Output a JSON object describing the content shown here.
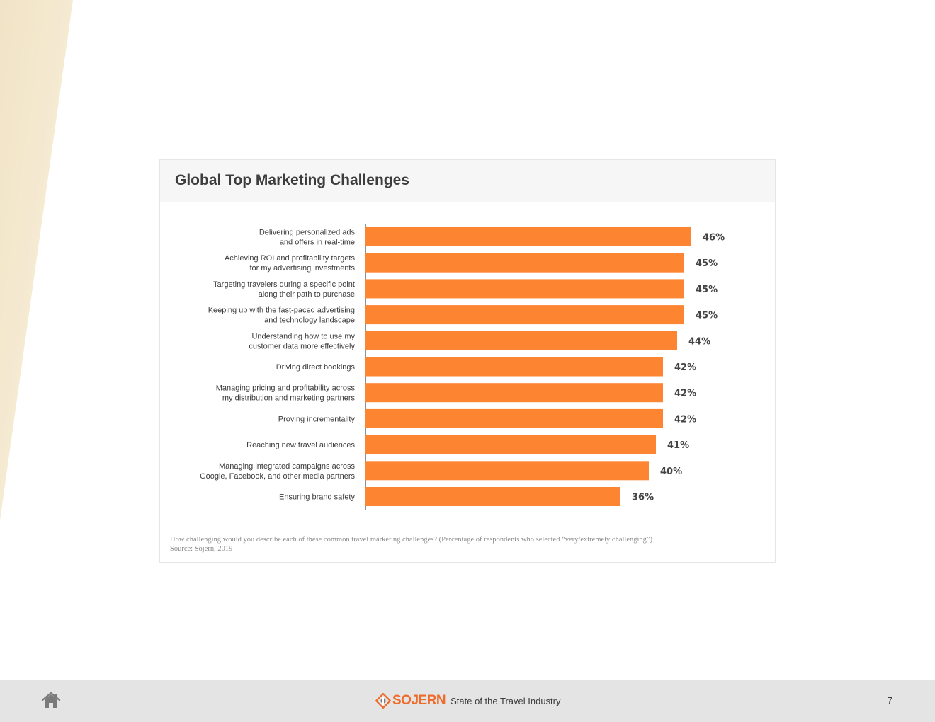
{
  "theme": {
    "bar_color": "#fd8532",
    "brand_color": "#ee6b2a",
    "footer_background": "#e4e4e4",
    "header_background": "#f6f6f6"
  },
  "chart": {
    "title": "Global Top Marketing Challenges",
    "footnote": "How challenging would you describe each of these common travel marketing challenges? (Percentage of respondents who selected “very/extremely challenging”)",
    "source": "Source: Sojern, 2019"
  },
  "chart_data": {
    "type": "bar",
    "orientation": "horizontal",
    "title": "Global Top Marketing Challenges",
    "categories": [
      [
        "Delivering personalized ads",
        "and offers in real-time"
      ],
      [
        "Achieving ROI and profitability targets",
        "for my advertising investments"
      ],
      [
        "Targeting travelers during a specific point",
        "along their path to purchase"
      ],
      [
        "Keeping up with the fast-paced advertising",
        "and technology landscape"
      ],
      [
        "Understanding how to use my",
        "customer data more effectively"
      ],
      [
        "Driving direct bookings"
      ],
      [
        "Managing pricing and profitability across",
        "my distribution and marketing partners"
      ],
      [
        "Proving incrementality"
      ],
      [
        "Reaching new travel audiences"
      ],
      [
        "Managing integrated campaigns across",
        "Google, Facebook, and other media partners"
      ],
      [
        "Ensuring brand safety"
      ]
    ],
    "values": [
      46,
      45,
      45,
      45,
      44,
      42,
      42,
      42,
      41,
      40,
      36
    ],
    "value_labels": [
      "46%",
      "45%",
      "45%",
      "45%",
      "44%",
      "42%",
      "42%",
      "42%",
      "41%",
      "40%",
      "36%"
    ],
    "value_unit": "%",
    "xlim": [
      0,
      100
    ],
    "grid": false,
    "legend": "none"
  },
  "footer": {
    "home_icon": "home-icon",
    "brand_logo_icon": "sojern-logo-icon",
    "brand_name": "SOJERN",
    "title": "State of the Travel Industry",
    "page_number": "7"
  }
}
